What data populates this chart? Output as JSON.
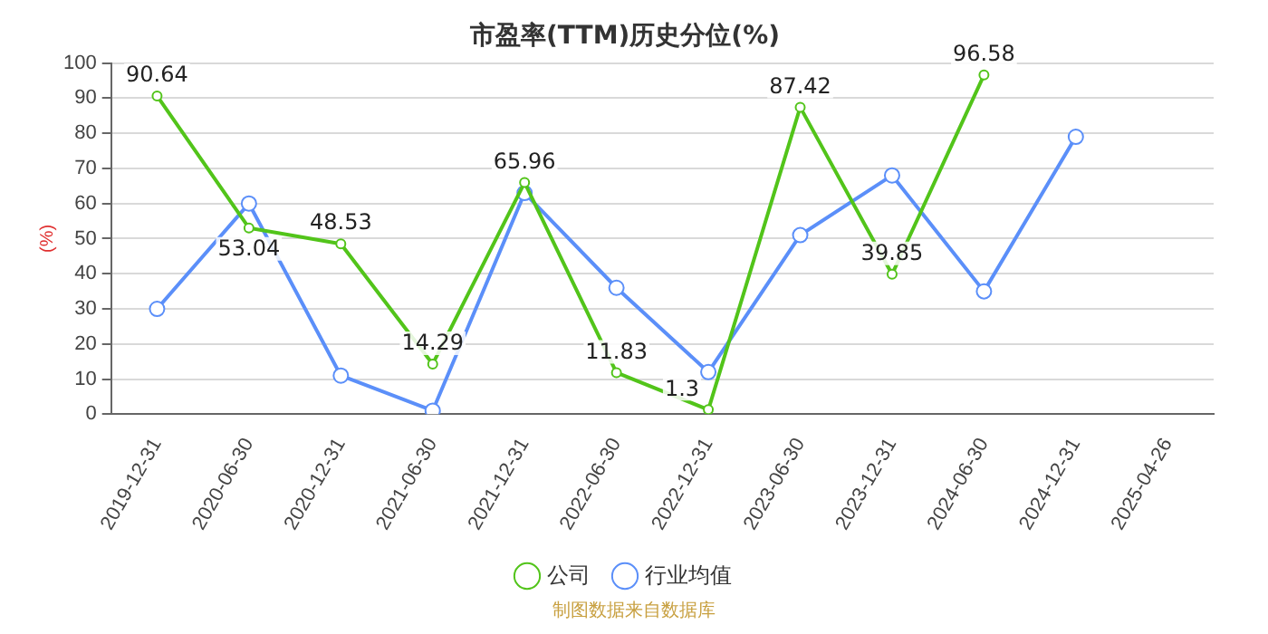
{
  "chart_data": {
    "type": "line",
    "title": "市盈率(TTM)历史分位(%)",
    "ylabel": "(%)",
    "categories": [
      "2019-12-31",
      "2020-06-30",
      "2020-12-31",
      "2021-06-30",
      "2021-12-31",
      "2022-06-30",
      "2022-12-31",
      "2023-06-30",
      "2023-12-31",
      "2024-06-30",
      "2024-12-31",
      "2025-04-26"
    ],
    "series": [
      {
        "name": "公司",
        "color": "#52c41a",
        "values": [
          90.64,
          53.04,
          48.53,
          14.29,
          65.96,
          11.83,
          1.3,
          87.42,
          39.85,
          96.58,
          null,
          null
        ],
        "value_labels": [
          "90.64",
          "53.04",
          "48.53",
          "14.29",
          "65.96",
          "11.83",
          "1.3",
          "87.42",
          "39.85",
          "96.58",
          null,
          null
        ]
      },
      {
        "name": "行业均值",
        "color": "#5b8ff9",
        "values": [
          30,
          60,
          11,
          1,
          63,
          36,
          12,
          51,
          68,
          35,
          79,
          null
        ]
      }
    ],
    "ylim": [
      0,
      100
    ],
    "yticks": [
      0,
      10,
      20,
      30,
      40,
      50,
      60,
      70,
      80,
      90,
      100
    ],
    "grid": "y",
    "legend": "bottom",
    "marker": "circle",
    "line_style": "solid",
    "annotations": [
      "制图数据来自数据库"
    ]
  }
}
